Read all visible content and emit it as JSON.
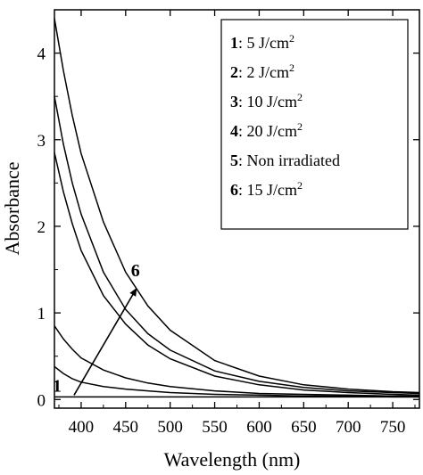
{
  "chart_data": {
    "type": "line",
    "xlabel": "Wavelength (nm)",
    "ylabel": "Absorbance",
    "xlim": [
      370,
      780
    ],
    "ylim": [
      -0.1,
      4.5
    ],
    "xticks": [
      400,
      450,
      500,
      550,
      600,
      650,
      700,
      750
    ],
    "yticks": [
      0,
      1,
      2,
      3,
      4
    ],
    "x": [
      370,
      380,
      390,
      400,
      425,
      450,
      475,
      500,
      550,
      600,
      650,
      700,
      750,
      780
    ],
    "series": [
      {
        "name": "1",
        "label": ":   5 J/cm",
        "sup": "2",
        "values": [
          0.03,
          0.03,
          0.03,
          0.03,
          0.03,
          0.03,
          0.03,
          0.03,
          0.03,
          0.03,
          0.03,
          0.03,
          0.03,
          0.03
        ]
      },
      {
        "name": "2",
        "label": ":   2 J/cm",
        "sup": "2",
        "values": [
          0.38,
          0.3,
          0.24,
          0.2,
          0.15,
          0.12,
          0.1,
          0.08,
          0.06,
          0.05,
          0.04,
          0.04,
          0.03,
          0.03
        ]
      },
      {
        "name": "3",
        "label": ": 10 J/cm",
        "sup": "2",
        "values": [
          0.85,
          0.7,
          0.58,
          0.48,
          0.34,
          0.25,
          0.19,
          0.15,
          0.1,
          0.07,
          0.06,
          0.05,
          0.04,
          0.04
        ]
      },
      {
        "name": "4",
        "label": ": 20 J/cm",
        "sup": "2",
        "values": [
          2.85,
          2.4,
          2.03,
          1.72,
          1.2,
          0.87,
          0.63,
          0.47,
          0.27,
          0.17,
          0.11,
          0.08,
          0.06,
          0.05
        ]
      },
      {
        "name": "5",
        "label": ": Non irradiated",
        "sup": "",
        "values": [
          3.5,
          2.95,
          2.5,
          2.14,
          1.47,
          1.04,
          0.76,
          0.57,
          0.33,
          0.21,
          0.14,
          0.1,
          0.08,
          0.07
        ]
      },
      {
        "name": "6",
        "label": ": 15 J/cm",
        "sup": "2",
        "values": [
          4.4,
          3.8,
          3.28,
          2.84,
          2.05,
          1.47,
          1.08,
          0.8,
          0.45,
          0.27,
          0.17,
          0.12,
          0.09,
          0.08
        ]
      }
    ],
    "legend_position": "top-right",
    "arrow": {
      "from_label": "1",
      "to_label": "6",
      "from": [
        392,
        0.05
      ],
      "to": [
        462,
        1.28
      ]
    },
    "grid": false
  }
}
